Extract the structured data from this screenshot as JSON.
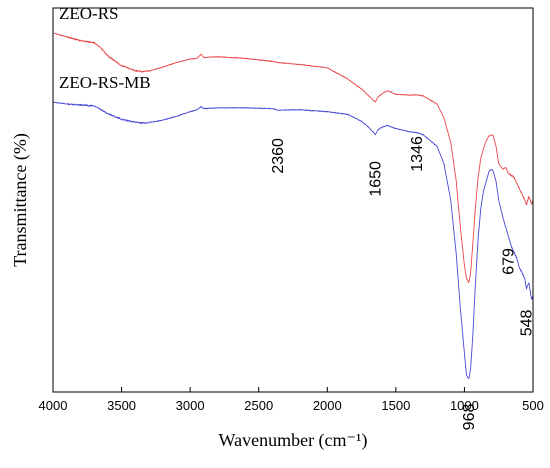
{
  "chart_data": {
    "type": "line",
    "xlabel": "Wavenumber (cm⁻¹)",
    "ylabel": "Transmittance (%)",
    "xlim": [
      4000,
      500
    ],
    "x_reversed": true,
    "x_ticks": [
      4000,
      3500,
      3000,
      2500,
      2000,
      1500,
      1000,
      500
    ],
    "y_ticks_shown": false,
    "ylim": [
      0,
      100
    ],
    "grid": false,
    "series": [
      {
        "name": "ZEO-RS",
        "color": "#e8474a",
        "x": [
          4000,
          3900,
          3800,
          3700,
          3650,
          3600,
          3500,
          3400,
          3350,
          3300,
          3200,
          3100,
          3000,
          2950,
          2920,
          2900,
          2800,
          2600,
          2400,
          2360,
          2200,
          2000,
          1850,
          1750,
          1700,
          1660,
          1650,
          1630,
          1600,
          1560,
          1500,
          1400,
          1346,
          1300,
          1200,
          1150,
          1100,
          1060,
          1030,
          1000,
          985,
          968,
          955,
          940,
          920,
          900,
          880,
          860,
          840,
          820,
          800,
          790,
          770,
          750,
          720,
          700,
          679,
          660,
          640,
          620,
          600,
          580,
          560,
          548,
          530,
          510,
          500
        ],
        "y": [
          93.5,
          92.5,
          91.5,
          91.0,
          89.5,
          87.5,
          85.0,
          83.7,
          83.4,
          83.6,
          84.6,
          85.8,
          86.7,
          86.9,
          88.0,
          87.1,
          87.3,
          86.9,
          86.1,
          85.8,
          85.3,
          84.4,
          81.5,
          78.9,
          77.2,
          75.8,
          75.5,
          76.8,
          77.7,
          78.5,
          77.5,
          77.3,
          77.4,
          77.1,
          75.0,
          71.5,
          65.0,
          55.0,
          43.0,
          33.0,
          29.5,
          28.5,
          31.0,
          38.0,
          48.0,
          56.0,
          61.0,
          63.5,
          65.5,
          66.7,
          67.0,
          66.8,
          64.0,
          59.5,
          58.0,
          58.5,
          57.0,
          56.5,
          56.0,
          54.5,
          53.0,
          51.5,
          50.0,
          48.8,
          51.0,
          49.0,
          50.0
        ]
      },
      {
        "name": "ZEO-RS-MB",
        "color": "#4848d6",
        "x": [
          4000,
          3900,
          3800,
          3700,
          3650,
          3600,
          3500,
          3400,
          3350,
          3300,
          3200,
          3100,
          3000,
          2950,
          2920,
          2900,
          2800,
          2600,
          2400,
          2360,
          2200,
          2000,
          1850,
          1750,
          1700,
          1660,
          1650,
          1630,
          1600,
          1560,
          1500,
          1400,
          1346,
          1300,
          1200,
          1150,
          1100,
          1060,
          1030,
          1000,
          985,
          968,
          955,
          940,
          920,
          900,
          880,
          860,
          840,
          820,
          800,
          790,
          770,
          750,
          720,
          700,
          679,
          660,
          640,
          620,
          600,
          580,
          560,
          548,
          530,
          510,
          500
        ],
        "y": [
          75.5,
          75.0,
          74.8,
          74.5,
          73.5,
          72.5,
          71.0,
          70.3,
          70.0,
          70.2,
          70.8,
          71.8,
          73.0,
          73.5,
          74.3,
          73.8,
          74.0,
          74.0,
          73.8,
          73.4,
          73.5,
          73.0,
          72.3,
          70.5,
          69.0,
          67.5,
          67.0,
          68.3,
          69.0,
          69.4,
          68.6,
          67.8,
          67.5,
          67.0,
          64.0,
          59.5,
          50.0,
          36.0,
          22.0,
          10.0,
          4.5,
          3.4,
          6.0,
          14.0,
          28.0,
          40.0,
          48.0,
          52.5,
          55.0,
          57.5,
          58.0,
          57.5,
          55.0,
          50.0,
          45.5,
          43.0,
          40.5,
          38.0,
          36.5,
          35.0,
          32.5,
          31.0,
          29.5,
          27.0,
          28.5,
          24.0,
          25.0
        ]
      }
    ],
    "series_labels": [
      {
        "text": "ZEO-RS",
        "series": "ZEO-RS"
      },
      {
        "text": "ZEO-RS-MB",
        "series": "ZEO-RS-MB"
      }
    ],
    "annotations": [
      {
        "text": "2360",
        "x": 2360,
        "y": 61.5,
        "rotation": -90
      },
      {
        "text": "1650",
        "x": 1650,
        "y": 55.5,
        "rotation": -90
      },
      {
        "text": "1346",
        "x": 1346,
        "y": 62.0,
        "rotation": -90
      },
      {
        "text": "968",
        "x": 968,
        "y": -6.5,
        "rotation": -90
      },
      {
        "text": "679",
        "x": 679,
        "y": 34.0,
        "rotation": -90
      },
      {
        "text": "548",
        "x": 548,
        "y": 18.0,
        "rotation": -90
      }
    ]
  }
}
